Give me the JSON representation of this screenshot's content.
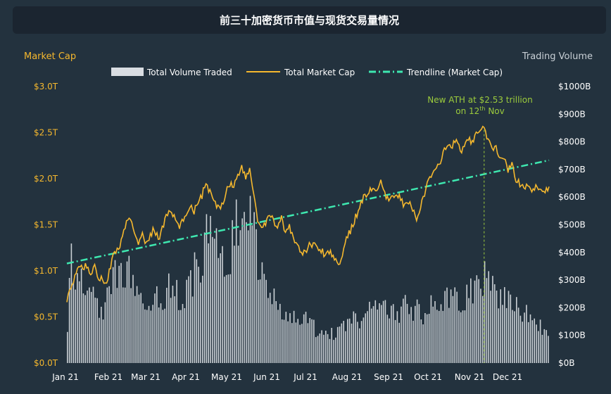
{
  "title": "前三十加密货币市值与现货交易量情况",
  "colors": {
    "background": "#23323e",
    "title_bg": "#1b2530",
    "market_cap": "#f5b82e",
    "volume": "#d9dde2",
    "trendline": "#3ee8b0",
    "annotation": "#9ccc3c"
  },
  "chart_data": {
    "type": "bar+line",
    "left_axis_title": "Market Cap",
    "right_axis_title": "Trading Volume",
    "legend": [
      {
        "label": "Total Volume Traded",
        "kind": "bar"
      },
      {
        "label": "Total Market Cap",
        "kind": "line"
      },
      {
        "label": "Trendline (Market Cap)",
        "kind": "dashdot"
      }
    ],
    "legend_position": "top-center",
    "x_ticks": [
      "Jan 21",
      "Feb 21",
      "Mar 21",
      "Apr 21",
      "May 21",
      "Jun 21",
      "Jul 21",
      "Aug 21",
      "Sep 21",
      "Oct 21",
      "Nov 21",
      "Dec 21"
    ],
    "left_ticks": [
      "$0.0T",
      "$0.5T",
      "$1.0T",
      "$1.5T",
      "$2.0T",
      "$2.5T",
      "$3.0T"
    ],
    "right_ticks": [
      "$0B",
      "$100B",
      "$200B",
      "$300B",
      "$400B",
      "$500B",
      "$600B",
      "$700B",
      "$800B",
      "$900B",
      "$1000B"
    ],
    "left_range_trillion": [
      0,
      3.0
    ],
    "right_range_billion": [
      0,
      1000
    ],
    "annotation": {
      "line1": "New ATH at $2.53 trillion",
      "line2_prefix": "on 12",
      "line2_sup": "th",
      "line2_suffix": " Nov",
      "day_of_year": 315
    },
    "trendline": {
      "start": 1.08,
      "end": 2.2
    },
    "market_cap_points_trillion": [
      [
        0,
        0.7
      ],
      [
        3,
        0.8
      ],
      [
        6,
        0.92
      ],
      [
        9,
        1.08
      ],
      [
        12,
        1.02
      ],
      [
        15,
        1.06
      ],
      [
        18,
        0.95
      ],
      [
        21,
        1.08
      ],
      [
        24,
        0.92
      ],
      [
        27,
        0.9
      ],
      [
        30,
        0.88
      ],
      [
        33,
        1.05
      ],
      [
        36,
        1.22
      ],
      [
        39,
        1.22
      ],
      [
        42,
        1.38
      ],
      [
        45,
        1.52
      ],
      [
        48,
        1.55
      ],
      [
        51,
        1.42
      ],
      [
        54,
        1.32
      ],
      [
        57,
        1.38
      ],
      [
        60,
        1.28
      ],
      [
        63,
        1.4
      ],
      [
        66,
        1.45
      ],
      [
        69,
        1.35
      ],
      [
        72,
        1.45
      ],
      [
        75,
        1.6
      ],
      [
        78,
        1.65
      ],
      [
        81,
        1.58
      ],
      [
        84,
        1.48
      ],
      [
        87,
        1.52
      ],
      [
        90,
        1.62
      ],
      [
        93,
        1.72
      ],
      [
        96,
        1.65
      ],
      [
        99,
        1.76
      ],
      [
        102,
        1.82
      ],
      [
        105,
        1.95
      ],
      [
        108,
        1.85
      ],
      [
        111,
        1.75
      ],
      [
        114,
        1.68
      ],
      [
        117,
        1.72
      ],
      [
        120,
        1.85
      ],
      [
        123,
        1.95
      ],
      [
        126,
        1.92
      ],
      [
        129,
        2.05
      ],
      [
        132,
        2.12
      ],
      [
        135,
        2.0
      ],
      [
        138,
        2.1
      ],
      [
        141,
        1.85
      ],
      [
        144,
        1.55
      ],
      [
        147,
        1.45
      ],
      [
        150,
        1.5
      ],
      [
        153,
        1.62
      ],
      [
        156,
        1.55
      ],
      [
        159,
        1.48
      ],
      [
        162,
        1.58
      ],
      [
        165,
        1.38
      ],
      [
        168,
        1.48
      ],
      [
        171,
        1.35
      ],
      [
        174,
        1.3
      ],
      [
        177,
        1.18
      ],
      [
        180,
        1.2
      ],
      [
        183,
        1.28
      ],
      [
        186,
        1.3
      ],
      [
        189,
        1.25
      ],
      [
        192,
        1.22
      ],
      [
        195,
        1.18
      ],
      [
        198,
        1.22
      ],
      [
        201,
        1.15
      ],
      [
        204,
        1.1
      ],
      [
        207,
        1.12
      ],
      [
        210,
        1.3
      ],
      [
        213,
        1.4
      ],
      [
        216,
        1.5
      ],
      [
        219,
        1.62
      ],
      [
        222,
        1.75
      ],
      [
        225,
        1.82
      ],
      [
        228,
        1.85
      ],
      [
        231,
        1.9
      ],
      [
        234,
        1.88
      ],
      [
        237,
        1.95
      ],
      [
        240,
        1.82
      ],
      [
        243,
        1.75
      ],
      [
        246,
        1.8
      ],
      [
        249,
        1.85
      ],
      [
        252,
        1.78
      ],
      [
        255,
        1.7
      ],
      [
        258,
        1.75
      ],
      [
        261,
        1.65
      ],
      [
        264,
        1.58
      ],
      [
        267,
        1.7
      ],
      [
        270,
        1.82
      ],
      [
        273,
        1.98
      ],
      [
        276,
        2.05
      ],
      [
        279,
        2.12
      ],
      [
        282,
        2.2
      ],
      [
        285,
        2.3
      ],
      [
        288,
        2.38
      ],
      [
        291,
        2.35
      ],
      [
        294,
        2.42
      ],
      [
        297,
        2.3
      ],
      [
        300,
        2.35
      ],
      [
        303,
        2.45
      ],
      [
        306,
        2.38
      ],
      [
        309,
        2.48
      ],
      [
        312,
        2.53
      ],
      [
        315,
        2.53
      ],
      [
        318,
        2.42
      ],
      [
        321,
        2.3
      ],
      [
        324,
        2.35
      ],
      [
        327,
        2.2
      ],
      [
        330,
        2.25
      ],
      [
        333,
        2.1
      ],
      [
        336,
        2.15
      ],
      [
        339,
        2.0
      ],
      [
        342,
        1.95
      ],
      [
        345,
        1.88
      ],
      [
        348,
        1.95
      ],
      [
        351,
        1.85
      ],
      [
        354,
        1.9
      ],
      [
        357,
        1.92
      ],
      [
        360,
        1.85
      ],
      [
        364,
        1.92
      ]
    ],
    "volume_points_billion": [
      [
        0,
        150
      ],
      [
        3,
        420
      ],
      [
        6,
        250
      ],
      [
        9,
        290
      ],
      [
        12,
        300
      ],
      [
        15,
        270
      ],
      [
        18,
        240
      ],
      [
        21,
        230
      ],
      [
        24,
        200
      ],
      [
        27,
        210
      ],
      [
        30,
        220
      ],
      [
        33,
        260
      ],
      [
        36,
        300
      ],
      [
        39,
        310
      ],
      [
        42,
        280
      ],
      [
        45,
        320
      ],
      [
        48,
        330
      ],
      [
        51,
        300
      ],
      [
        54,
        260
      ],
      [
        57,
        250
      ],
      [
        60,
        230
      ],
      [
        63,
        250
      ],
      [
        66,
        240
      ],
      [
        69,
        220
      ],
      [
        72,
        230
      ],
      [
        75,
        260
      ],
      [
        78,
        280
      ],
      [
        81,
        250
      ],
      [
        84,
        240
      ],
      [
        87,
        230
      ],
      [
        90,
        260
      ],
      [
        93,
        300
      ],
      [
        96,
        330
      ],
      [
        99,
        350
      ],
      [
        102,
        400
      ],
      [
        105,
        450
      ],
      [
        108,
        480
      ],
      [
        111,
        420
      ],
      [
        114,
        380
      ],
      [
        117,
        350
      ],
      [
        120,
        360
      ],
      [
        123,
        400
      ],
      [
        126,
        470
      ],
      [
        129,
        480
      ],
      [
        132,
        460
      ],
      [
        135,
        440
      ],
      [
        138,
        520
      ],
      [
        141,
        480
      ],
      [
        144,
        380
      ],
      [
        147,
        300
      ],
      [
        150,
        250
      ],
      [
        153,
        230
      ],
      [
        156,
        220
      ],
      [
        159,
        210
      ],
      [
        162,
        200
      ],
      [
        165,
        190
      ],
      [
        168,
        180
      ],
      [
        171,
        170
      ],
      [
        174,
        160
      ],
      [
        177,
        150
      ],
      [
        180,
        150
      ],
      [
        183,
        140
      ],
      [
        186,
        130
      ],
      [
        189,
        120
      ],
      [
        192,
        115
      ],
      [
        195,
        110
      ],
      [
        198,
        105
      ],
      [
        201,
        100
      ],
      [
        204,
        110
      ],
      [
        207,
        120
      ],
      [
        210,
        130
      ],
      [
        213,
        140
      ],
      [
        216,
        150
      ],
      [
        219,
        160
      ],
      [
        222,
        170
      ],
      [
        225,
        180
      ],
      [
        228,
        190
      ],
      [
        231,
        200
      ],
      [
        234,
        210
      ],
      [
        237,
        220
      ],
      [
        240,
        210
      ],
      [
        243,
        200
      ],
      [
        246,
        190
      ],
      [
        249,
        180
      ],
      [
        252,
        190
      ],
      [
        255,
        200
      ],
      [
        258,
        210
      ],
      [
        261,
        200
      ],
      [
        264,
        190
      ],
      [
        267,
        180
      ],
      [
        270,
        190
      ],
      [
        273,
        200
      ],
      [
        276,
        210
      ],
      [
        279,
        220
      ],
      [
        282,
        230
      ],
      [
        285,
        220
      ],
      [
        288,
        230
      ],
      [
        291,
        240
      ],
      [
        294,
        250
      ],
      [
        297,
        240
      ],
      [
        300,
        230
      ],
      [
        303,
        240
      ],
      [
        306,
        250
      ],
      [
        309,
        260
      ],
      [
        312,
        280
      ],
      [
        315,
        300
      ],
      [
        318,
        280
      ],
      [
        321,
        260
      ],
      [
        324,
        250
      ],
      [
        327,
        240
      ],
      [
        330,
        230
      ],
      [
        333,
        220
      ],
      [
        336,
        210
      ],
      [
        339,
        200
      ],
      [
        342,
        190
      ],
      [
        345,
        180
      ],
      [
        348,
        170
      ],
      [
        351,
        160
      ],
      [
        354,
        150
      ],
      [
        357,
        140
      ],
      [
        360,
        130
      ],
      [
        364,
        120
      ]
    ]
  }
}
